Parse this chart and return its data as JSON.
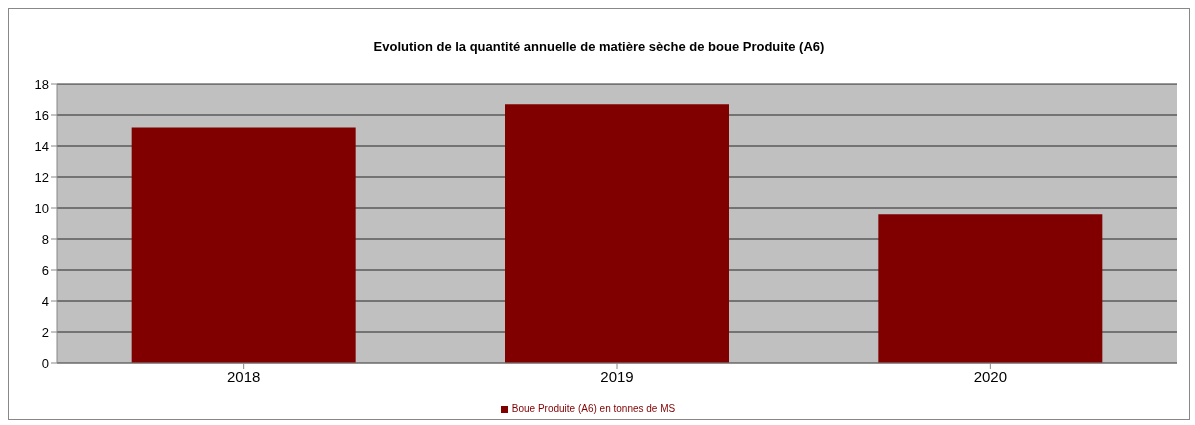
{
  "chart_data": {
    "type": "bar",
    "title": "Evolution de la quantité annuelle de matière sèche de boue Produite (A6)",
    "categories": [
      "2018",
      "2019",
      "2020"
    ],
    "series": [
      {
        "name": "Boue Produite (A6) en tonnes de MS",
        "color": "#800000",
        "values": [
          15.2,
          16.7,
          9.6
        ]
      }
    ],
    "ylim": [
      0,
      18
    ],
    "yticks": [
      0,
      2,
      4,
      6,
      8,
      10,
      12,
      14,
      16,
      18
    ],
    "grid": "y",
    "legend": "bottom"
  }
}
